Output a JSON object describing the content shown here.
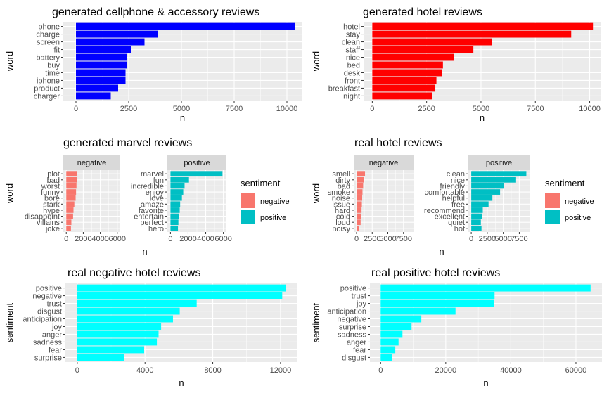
{
  "colors": {
    "panel_bg": "#ebebeb",
    "grid_major": "#ffffff",
    "strip_bg": "#d9d9d9",
    "tick": "#333333",
    "negative": "#f8766d",
    "positive": "#00bfc4"
  },
  "chart_data": [
    {
      "type": "bar",
      "orientation": "horizontal",
      "title": "generated cellphone & accessory reviews",
      "xlabel": "n",
      "ylabel": "word",
      "color": "#0000ff",
      "xlim": [
        -600,
        10700
      ],
      "xticks": [
        0,
        2500,
        5000,
        7500,
        10000
      ],
      "xtick_labels": [
        "0",
        "2500",
        "5000",
        "7500",
        "10000"
      ],
      "categories": [
        "phone",
        "charge",
        "screen",
        "fit",
        "battery",
        "buy",
        "time",
        "iphone",
        "product",
        "charger"
      ],
      "values": [
        10400,
        3900,
        3250,
        2600,
        2400,
        2400,
        2350,
        2350,
        2000,
        1650
      ]
    },
    {
      "type": "bar",
      "orientation": "horizontal",
      "title": "generated hotel reviews",
      "xlabel": "n",
      "ylabel": "word",
      "color": "#ff0000",
      "xlim": [
        -400,
        10500
      ],
      "xticks": [
        0,
        2500,
        5000,
        7500,
        10000
      ],
      "xtick_labels": [
        "0",
        "2500",
        "5000",
        "7500",
        "10000"
      ],
      "categories": [
        "hotel",
        "stay",
        "clean",
        "staff",
        "nice",
        "bed",
        "desk",
        "front",
        "breakfast",
        "night"
      ],
      "values": [
        10150,
        9150,
        5500,
        4650,
        3750,
        3250,
        3200,
        2950,
        2900,
        2750
      ]
    },
    {
      "type": "bar",
      "orientation": "horizontal",
      "title": "generated marvel reviews",
      "xlabel": "n",
      "ylabel": "word",
      "xlim": [
        -350,
        6350
      ],
      "xticks": [
        0,
        2000,
        4000,
        6000
      ],
      "xtick_labels": [
        "0",
        "2000",
        "4000",
        "6000"
      ],
      "legend": {
        "title": "sentiment",
        "entries": [
          {
            "label": "negative",
            "color": "#f8766d"
          },
          {
            "label": "positive",
            "color": "#00bfc4"
          }
        ]
      },
      "facets": [
        {
          "label": "negative",
          "color": "#f8766d",
          "categories": [
            "plot",
            "bad",
            "worst",
            "funny",
            "bore",
            "stark",
            "hype",
            "disappoint",
            "villains",
            "joke"
          ],
          "values": [
            1300,
            1250,
            1200,
            1150,
            1100,
            950,
            850,
            800,
            600,
            550
          ]
        },
        {
          "label": "positive",
          "color": "#00bfc4",
          "categories": [
            "marvel",
            "fun",
            "incredible",
            "enjoy",
            "love",
            "amaze",
            "favorite",
            "entertain",
            "perfect",
            "hero"
          ],
          "values": [
            5900,
            2100,
            1600,
            1450,
            1300,
            1100,
            1050,
            1000,
            900,
            850
          ]
        }
      ]
    },
    {
      "type": "bar",
      "orientation": "horizontal",
      "title": "real hotel reviews",
      "xlabel": "n",
      "ylabel": "word",
      "xlim": [
        -450,
        9100
      ],
      "xticks": [
        0,
        2500,
        5000,
        7500
      ],
      "xtick_labels": [
        "0",
        "2500",
        "5000",
        "7500"
      ],
      "legend": {
        "title": "sentiment",
        "entries": [
          {
            "label": "negative",
            "color": "#f8766d"
          },
          {
            "label": "positive",
            "color": "#00bfc4"
          }
        ]
      },
      "facets": [
        {
          "label": "negative",
          "color": "#f8766d",
          "categories": [
            "smell",
            "dirty",
            "bad",
            "smoke",
            "noise",
            "issue",
            "hard",
            "cold",
            "loud",
            "noisy"
          ],
          "values": [
            1350,
            1200,
            1050,
            950,
            900,
            850,
            800,
            700,
            650,
            400
          ]
        },
        {
          "label": "positive",
          "color": "#00bfc4",
          "categories": [
            "clean",
            "nice",
            "friendly",
            "comfortable",
            "helpful",
            "free",
            "recommend",
            "excellent",
            "quiet",
            "hot"
          ],
          "values": [
            8600,
            7000,
            5100,
            4500,
            3300,
            2700,
            1800,
            1700,
            1500,
            1600
          ]
        }
      ]
    },
    {
      "type": "bar",
      "orientation": "horizontal",
      "title": "real negative hotel reviews",
      "xlabel": "n",
      "ylabel": "sentiment",
      "color": "#00ffff",
      "xlim": [
        -700,
        13000
      ],
      "xticks": [
        0,
        4000,
        8000,
        12000
      ],
      "xtick_labels": [
        "0",
        "4000",
        "8000",
        "12000"
      ],
      "categories": [
        "positive",
        "negative",
        "trust",
        "disgust",
        "anticipation",
        "joy",
        "anger",
        "sadness",
        "fear",
        "surprise"
      ],
      "values": [
        12300,
        12100,
        7050,
        6050,
        5650,
        4950,
        4800,
        4700,
        3950,
        2750
      ]
    },
    {
      "type": "bar",
      "orientation": "horizontal",
      "title": "real positive hotel reviews",
      "xlabel": "n",
      "ylabel": "sentiment",
      "color": "#00ffff",
      "xlim": [
        -3300,
        68000
      ],
      "xticks": [
        0,
        20000,
        40000,
        60000
      ],
      "xtick_labels": [
        "0",
        "20000",
        "40000",
        "60000"
      ],
      "categories": [
        "positive",
        "trust",
        "joy",
        "anticipation",
        "negative",
        "surprise",
        "sadness",
        "anger",
        "fear",
        "disgust"
      ],
      "values": [
        64500,
        35000,
        34800,
        23000,
        12500,
        9500,
        6700,
        5500,
        4500,
        3500
      ]
    }
  ]
}
